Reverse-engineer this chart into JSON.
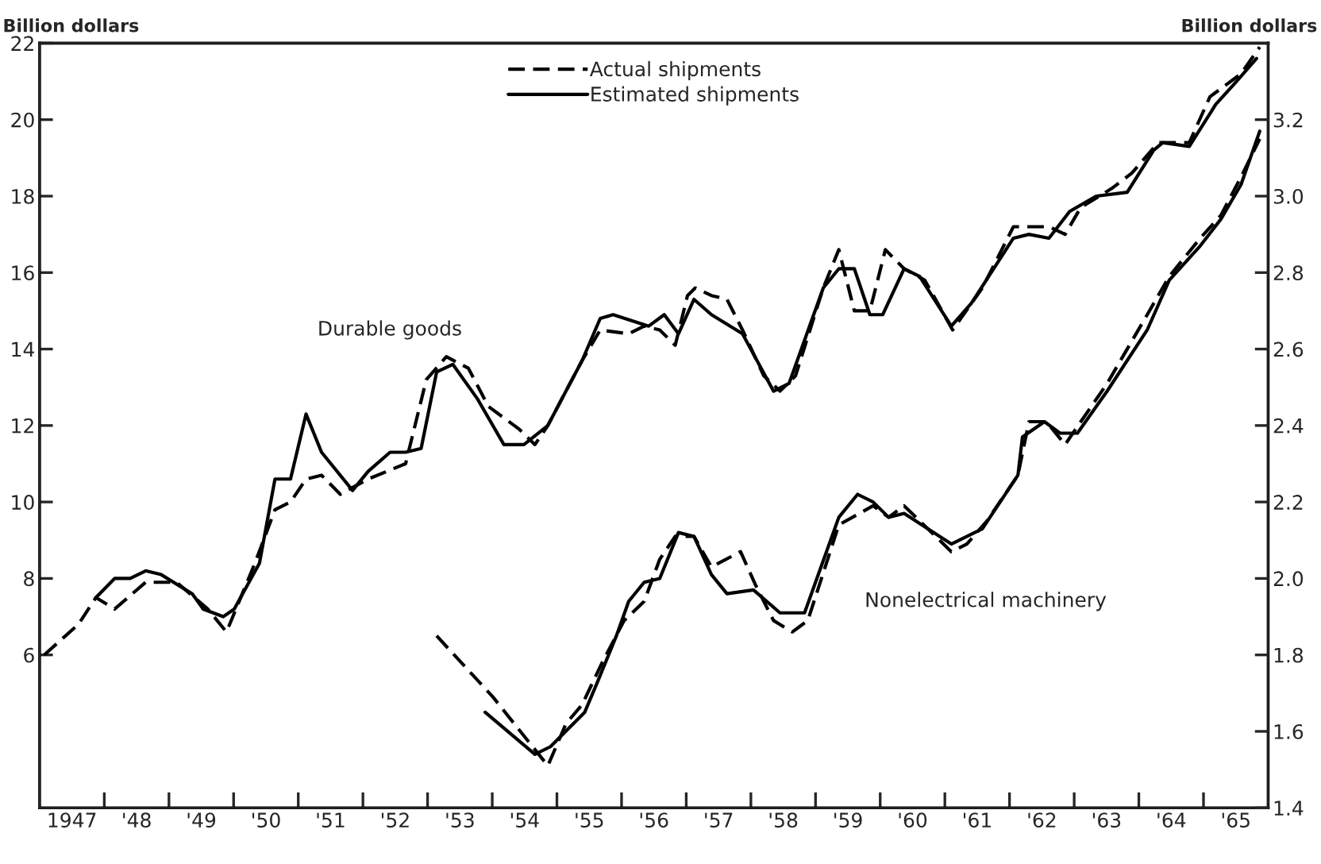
{
  "chart_data": {
    "type": "line",
    "ylabel": "Billion dollars",
    "y2label": "Billion dollars",
    "xlim": [
      1946.5,
      1965.5
    ],
    "xticks": [
      {
        "value": 1947,
        "label": "1947"
      },
      {
        "value": 1947.5,
        "label": null
      },
      {
        "value": 1948,
        "label": "'48"
      },
      {
        "value": 1948.5,
        "label": null
      },
      {
        "value": 1949,
        "label": "'49"
      },
      {
        "value": 1949.5,
        "label": null
      },
      {
        "value": 1950,
        "label": "'50"
      },
      {
        "value": 1950.5,
        "label": null
      },
      {
        "value": 1951,
        "label": "'51"
      },
      {
        "value": 1951.5,
        "label": null
      },
      {
        "value": 1952,
        "label": "'52"
      },
      {
        "value": 1952.5,
        "label": null
      },
      {
        "value": 1953,
        "label": "'53"
      },
      {
        "value": 1953.5,
        "label": null
      },
      {
        "value": 1954,
        "label": "'54"
      },
      {
        "value": 1954.5,
        "label": null
      },
      {
        "value": 1955,
        "label": "'55"
      },
      {
        "value": 1955.5,
        "label": null
      },
      {
        "value": 1956,
        "label": "'56"
      },
      {
        "value": 1956.5,
        "label": null
      },
      {
        "value": 1957,
        "label": "'57"
      },
      {
        "value": 1957.5,
        "label": null
      },
      {
        "value": 1958,
        "label": "'58"
      },
      {
        "value": 1958.5,
        "label": null
      },
      {
        "value": 1959,
        "label": "'59"
      },
      {
        "value": 1959.5,
        "label": null
      },
      {
        "value": 1960,
        "label": "'60"
      },
      {
        "value": 1960.5,
        "label": null
      },
      {
        "value": 1961,
        "label": "'61"
      },
      {
        "value": 1961.5,
        "label": null
      },
      {
        "value": 1962,
        "label": "'62"
      },
      {
        "value": 1962.5,
        "label": null
      },
      {
        "value": 1963,
        "label": "'63"
      },
      {
        "value": 1963.5,
        "label": null
      },
      {
        "value": 1964,
        "label": "'64"
      },
      {
        "value": 1964.5,
        "label": null
      },
      {
        "value": 1965,
        "label": "'65"
      }
    ],
    "ylim": [
      2,
      22
    ],
    "yticks": [
      6,
      8,
      10,
      12,
      14,
      16,
      18,
      20,
      22
    ],
    "y2lim": [
      1.4,
      3.4
    ],
    "y2ticks": [
      {
        "value": 1.4,
        "label": "1.4"
      },
      {
        "value": 1.6,
        "label": "1.6"
      },
      {
        "value": 1.8,
        "label": "1.8"
      },
      {
        "value": 2.0,
        "label": "2.0"
      },
      {
        "value": 2.2,
        "label": "2.2"
      },
      {
        "value": 2.4,
        "label": "2.4"
      },
      {
        "value": 2.6,
        "label": "2.6"
      },
      {
        "value": 2.8,
        "label": "2.8"
      },
      {
        "value": 3.0,
        "label": "3.0"
      },
      {
        "value": 3.2,
        "label": "3.2"
      }
    ],
    "grid": false,
    "legend": "top",
    "marker": "none",
    "annotations": [
      "Durable goods",
      "Nonelectrical machinery"
    ],
    "series": [
      {
        "name": "Actual shipments",
        "color": "#000000",
        "line_style": "dashed",
        "x": [
          1946.57,
          1947.1,
          1947.37,
          1947.66,
          1948.14,
          1948.62,
          1949.1,
          1949.39,
          1949.83,
          1950.14,
          1950.38,
          1950.62,
          1950.86,
          1951.15,
          1951.58,
          1952.16,
          1952.48,
          1952.79,
          1953.13,
          1953.44,
          1953.92,
          1954.16,
          1954.36,
          1954.64,
          1954.89,
          1955.17,
          1955.61,
          1955.85,
          1956.09,
          1956.33,
          1956.52,
          1956.64,
          1956.89,
          1957.13,
          1957.37,
          1957.7,
          1957.95,
          1958.19,
          1958.62,
          1958.86,
          1959.1,
          1959.34,
          1959.58,
          1959.87,
          1960.19,
          1960.62,
          1961.08,
          1961.56,
          1962.11,
          1962.36,
          1962.6,
          1963.08,
          1963.39,
          1963.8,
          1964.28,
          1964.6,
          1964.84,
          1965.08,
          1965.37
        ],
        "values": [
          6.0,
          6.8,
          7.5,
          7.2,
          7.9,
          7.9,
          7.2,
          6.6,
          8.4,
          9.8,
          10.0,
          10.6,
          10.7,
          10.2,
          10.6,
          11.0,
          13.2,
          13.8,
          13.5,
          12.5,
          11.9,
          11.5,
          12.0,
          12.9,
          13.7,
          14.5,
          14.4,
          14.6,
          14.5,
          14.1,
          15.4,
          15.6,
          15.4,
          15.3,
          14.5,
          13.3,
          12.9,
          13.3,
          15.6,
          16.6,
          15.0,
          15.0,
          16.6,
          16.1,
          15.8,
          14.5,
          15.6,
          17.2,
          17.2,
          17.0,
          17.7,
          18.2,
          18.6,
          19.4,
          19.4,
          20.6,
          20.9,
          21.2,
          21.9
        ]
      },
      {
        "name": "Estimated shipments",
        "color": "#000000",
        "line_style": "solid",
        "x": [
          1947.37,
          1947.66,
          1947.9,
          1948.14,
          1948.38,
          1948.86,
          1949.03,
          1949.34,
          1949.51,
          1949.9,
          1950.14,
          1950.38,
          1950.62,
          1950.86,
          1951.34,
          1951.58,
          1951.92,
          1952.16,
          1952.4,
          1952.64,
          1952.89,
          1953.27,
          1953.68,
          1953.99,
          1954.36,
          1954.64,
          1954.89,
          1955.17,
          1955.37,
          1955.73,
          1955.92,
          1956.16,
          1956.38,
          1956.62,
          1956.89,
          1957.37,
          1957.85,
          1958.09,
          1958.62,
          1958.86,
          1959.1,
          1959.34,
          1959.54,
          1959.87,
          1960.11,
          1960.6,
          1960.91,
          1961.56,
          1961.8,
          1962.11,
          1962.43,
          1962.84,
          1963.32,
          1963.73,
          1963.87,
          1964.28,
          1964.69,
          1965.01,
          1965.32
        ],
        "values": [
          7.5,
          8.0,
          8.0,
          8.2,
          8.1,
          7.6,
          7.2,
          7.0,
          7.2,
          8.4,
          10.6,
          10.6,
          12.3,
          11.3,
          10.3,
          10.8,
          11.3,
          11.3,
          11.4,
          13.4,
          13.6,
          12.7,
          11.5,
          11.5,
          12.0,
          12.9,
          13.7,
          14.8,
          14.9,
          14.7,
          14.6,
          14.9,
          14.4,
          15.3,
          14.9,
          14.4,
          12.9,
          13.1,
          15.6,
          16.1,
          16.1,
          14.9,
          14.9,
          16.1,
          15.9,
          14.6,
          15.2,
          16.9,
          17.0,
          16.9,
          17.6,
          18.0,
          18.1,
          19.2,
          19.4,
          19.3,
          20.4,
          21.0,
          21.6
        ]
      },
      {
        "color": "#000000",
        "line_style": "dashed",
        "axis": "y2",
        "x": [
          1952.64,
          1953.51,
          1954.36,
          1954.64,
          1954.89,
          1955.2,
          1955.54,
          1955.85,
          1956.09,
          1956.33,
          1956.62,
          1956.89,
          1957.34,
          1957.58,
          1957.85,
          1958.14,
          1958.38,
          1958.86,
          1959.39,
          1959.63,
          1959.87,
          1960.6,
          1960.84,
          1961.15,
          1961.63,
          1961.8,
          1962.07,
          1962.36,
          1962.52,
          1963.01,
          1963.63,
          1963.97,
          1964.45,
          1964.77,
          1965.08,
          1965.37
        ],
        "values": [
          1.85,
          1.69,
          1.51,
          1.62,
          1.67,
          1.78,
          1.89,
          1.94,
          2.05,
          2.11,
          2.11,
          2.03,
          2.07,
          1.98,
          1.89,
          1.86,
          1.89,
          2.14,
          2.19,
          2.16,
          2.19,
          2.07,
          2.09,
          2.15,
          2.27,
          2.41,
          2.41,
          2.35,
          2.39,
          2.51,
          2.69,
          2.79,
          2.89,
          2.95,
          3.05,
          3.15
        ]
      },
      {
        "color": "#000000",
        "line_style": "solid",
        "axis": "y2",
        "x": [
          1953.39,
          1954.16,
          1954.4,
          1954.93,
          1955.13,
          1955.42,
          1955.61,
          1955.85,
          1956.09,
          1956.38,
          1956.62,
          1956.89,
          1957.13,
          1957.54,
          1957.95,
          1958.33,
          1958.86,
          1959.15,
          1959.39,
          1959.63,
          1959.87,
          1960.6,
          1961.08,
          1961.63,
          1961.7,
          1962.04,
          1962.28,
          1962.55,
          1963.01,
          1963.63,
          1963.97,
          1964.45,
          1964.77,
          1965.08,
          1965.37
        ],
        "values": [
          1.65,
          1.54,
          1.56,
          1.65,
          1.73,
          1.85,
          1.94,
          1.99,
          2.0,
          2.12,
          2.11,
          2.01,
          1.96,
          1.97,
          1.91,
          1.91,
          2.16,
          2.22,
          2.2,
          2.16,
          2.17,
          2.09,
          2.13,
          2.27,
          2.37,
          2.41,
          2.38,
          2.38,
          2.49,
          2.65,
          2.78,
          2.87,
          2.94,
          3.03,
          3.17
        ]
      }
    ]
  }
}
